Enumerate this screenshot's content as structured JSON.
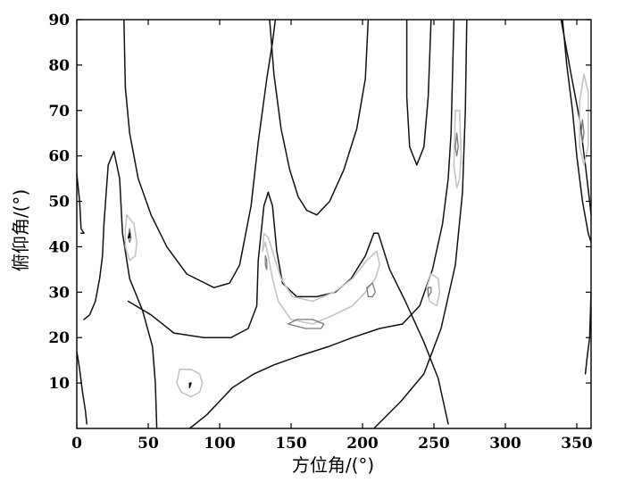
{
  "chart_data": {
    "type": "contour",
    "xlabel": "方位角/(°)",
    "ylabel": "俯仰角/(°)",
    "xlim": [
      0,
      360
    ],
    "ylim": [
      0,
      90
    ],
    "xticks": [
      0,
      50,
      100,
      150,
      200,
      250,
      300,
      350
    ],
    "yticks": [
      10,
      20,
      30,
      40,
      50,
      60,
      70,
      80,
      90
    ],
    "grid": false,
    "colors": {
      "dark": "#111111",
      "mid": "#7a7a7a",
      "light": "#c4c4c4"
    },
    "contours": [
      {
        "level": "dark",
        "points": [
          [
            0,
            56
          ],
          [
            2,
            50
          ],
          [
            3,
            44
          ],
          [
            5,
            43
          ],
          [
            3,
            43
          ]
        ]
      },
      {
        "level": "dark",
        "points": [
          [
            0,
            17
          ],
          [
            2,
            13
          ],
          [
            4,
            8
          ],
          [
            6,
            4
          ],
          [
            7,
            1
          ]
        ]
      },
      {
        "level": "dark",
        "points": [
          [
            33,
            90
          ],
          [
            34,
            75
          ],
          [
            37,
            65
          ],
          [
            43,
            55
          ],
          [
            52,
            47
          ],
          [
            63,
            40
          ],
          [
            77,
            34
          ],
          [
            96,
            31
          ],
          [
            107,
            32
          ],
          [
            114,
            36
          ],
          [
            122,
            49
          ],
          [
            127,
            63
          ],
          [
            133,
            77
          ],
          [
            137,
            85
          ],
          [
            139,
            90
          ]
        ]
      },
      {
        "level": "dark",
        "points": [
          [
            135,
            90
          ],
          [
            138,
            78
          ],
          [
            143,
            66
          ],
          [
            149,
            57
          ],
          [
            155,
            51
          ],
          [
            161,
            48
          ],
          [
            168,
            47
          ],
          [
            177,
            50
          ],
          [
            187,
            57
          ],
          [
            196,
            66
          ],
          [
            202,
            77
          ],
          [
            204,
            90
          ]
        ]
      },
      {
        "level": "dark",
        "points": [
          [
            231,
            90
          ],
          [
            231,
            73
          ],
          [
            233,
            62
          ],
          [
            238,
            58
          ],
          [
            243,
            62
          ],
          [
            246,
            73
          ],
          [
            248,
            90
          ]
        ]
      },
      {
        "level": "dark",
        "points": [
          [
            56,
            0
          ],
          [
            55,
            10
          ],
          [
            53,
            18
          ],
          [
            46,
            26
          ],
          [
            37,
            33
          ],
          [
            32,
            43
          ],
          [
            30,
            55
          ],
          [
            26,
            61
          ],
          [
            22,
            58
          ],
          [
            19,
            45
          ],
          [
            18,
            38
          ],
          [
            16,
            33
          ],
          [
            13,
            28
          ],
          [
            9,
            25
          ],
          [
            5,
            24
          ]
        ]
      },
      {
        "level": "dark",
        "points": [
          [
            36,
            28
          ],
          [
            52,
            25
          ],
          [
            68,
            21
          ],
          [
            89,
            20
          ],
          [
            108,
            20
          ],
          [
            120,
            22
          ],
          [
            126,
            27
          ],
          [
            127,
            37
          ],
          [
            131,
            49
          ],
          [
            134,
            52
          ],
          [
            137,
            49
          ],
          [
            140,
            39
          ],
          [
            144,
            32
          ],
          [
            154,
            29
          ],
          [
            168,
            29
          ],
          [
            181,
            30
          ],
          [
            192,
            33
          ],
          [
            202,
            38
          ],
          [
            208,
            43
          ],
          [
            211,
            43
          ],
          [
            215,
            39
          ],
          [
            219,
            35
          ],
          [
            230,
            28
          ],
          [
            243,
            19
          ],
          [
            253,
            11
          ],
          [
            260,
            1
          ]
        ]
      },
      {
        "level": "dark",
        "points": [
          [
            79,
            0
          ],
          [
            91,
            3
          ],
          [
            109,
            9
          ],
          [
            124,
            12
          ],
          [
            138,
            14
          ],
          [
            156,
            16
          ],
          [
            176,
            18
          ],
          [
            193,
            20
          ],
          [
            212,
            22
          ],
          [
            228,
            23
          ],
          [
            240,
            27
          ],
          [
            249,
            35
          ],
          [
            256,
            45
          ],
          [
            260,
            55
          ],
          [
            262,
            65
          ],
          [
            264,
            90
          ]
        ]
      },
      {
        "level": "dark",
        "points": [
          [
            208,
            0
          ],
          [
            227,
            6
          ],
          [
            243,
            12
          ],
          [
            255,
            22
          ],
          [
            265,
            36
          ],
          [
            270,
            52
          ],
          [
            272,
            70
          ],
          [
            273,
            90
          ]
        ]
      },
      {
        "level": "dark",
        "points": [
          [
            340,
            90
          ],
          [
            343,
            80
          ],
          [
            347,
            70
          ],
          [
            350,
            60
          ],
          [
            354,
            50
          ],
          [
            358,
            43
          ],
          [
            360,
            41
          ]
        ]
      },
      {
        "level": "dark",
        "points": [
          [
            339,
            90
          ],
          [
            346,
            78
          ],
          [
            352,
            68
          ],
          [
            356,
            58
          ],
          [
            359,
            50
          ],
          [
            360,
            47
          ]
        ]
      },
      {
        "level": "dark",
        "points": [
          [
            360,
            30
          ],
          [
            359,
            20
          ],
          [
            357,
            15
          ],
          [
            356,
            12
          ]
        ]
      },
      {
        "level": "light",
        "points": [
          [
            35,
            47
          ],
          [
            40,
            45
          ],
          [
            42,
            41
          ],
          [
            41,
            38
          ],
          [
            37,
            37
          ],
          [
            34,
            40
          ],
          [
            34,
            44
          ],
          [
            35,
            47
          ]
        ]
      },
      {
        "level": "light",
        "points": [
          [
            130,
            39
          ],
          [
            132,
            41
          ],
          [
            134,
            38
          ],
          [
            137,
            33
          ],
          [
            141,
            28
          ],
          [
            150,
            24
          ],
          [
            165,
            23
          ],
          [
            180,
            25
          ],
          [
            193,
            27
          ],
          [
            202,
            30
          ],
          [
            209,
            33
          ],
          [
            212,
            36
          ],
          [
            210,
            39
          ],
          [
            203,
            37
          ],
          [
            193,
            33
          ],
          [
            180,
            30
          ],
          [
            165,
            28
          ],
          [
            151,
            29
          ],
          [
            143,
            33
          ],
          [
            138,
            38
          ],
          [
            134,
            42
          ],
          [
            131,
            43
          ],
          [
            130,
            39
          ]
        ]
      },
      {
        "level": "light",
        "points": [
          [
            248,
            34
          ],
          [
            253,
            33
          ],
          [
            254,
            30
          ],
          [
            252,
            27
          ],
          [
            247,
            28
          ],
          [
            245,
            31
          ],
          [
            248,
            34
          ]
        ]
      },
      {
        "level": "light",
        "points": [
          [
            72,
            13
          ],
          [
            80,
            13
          ],
          [
            86,
            12
          ],
          [
            88,
            10
          ],
          [
            86,
            8
          ],
          [
            80,
            7
          ],
          [
            73,
            8
          ],
          [
            70,
            10
          ],
          [
            72,
            13
          ]
        ]
      },
      {
        "level": "light",
        "points": [
          [
            268,
            70
          ],
          [
            269,
            60
          ],
          [
            268,
            55
          ],
          [
            266,
            53
          ],
          [
            264,
            58
          ],
          [
            265,
            70
          ],
          [
            268,
            70
          ]
        ]
      },
      {
        "level": "light",
        "points": [
          [
            358,
            74
          ],
          [
            358,
            62
          ],
          [
            355,
            58
          ],
          [
            352,
            62
          ],
          [
            352,
            72
          ],
          [
            355,
            78
          ],
          [
            358,
            74
          ]
        ]
      },
      {
        "level": "mid",
        "points": [
          [
            37,
            44
          ],
          [
            38,
            42
          ],
          [
            37,
            41
          ],
          [
            36,
            42
          ],
          [
            37,
            44
          ]
        ]
      },
      {
        "level": "mid",
        "points": [
          [
            132,
            38
          ],
          [
            133,
            37
          ],
          [
            133,
            35
          ],
          [
            132,
            36
          ],
          [
            132,
            38
          ]
        ]
      },
      {
        "level": "mid",
        "points": [
          [
            148,
            23
          ],
          [
            160,
            22
          ],
          [
            171,
            22
          ],
          [
            173,
            23
          ],
          [
            165,
            24
          ],
          [
            154,
            24
          ],
          [
            148,
            23
          ]
        ]
      },
      {
        "level": "mid",
        "points": [
          [
            203,
            31
          ],
          [
            207,
            32
          ],
          [
            209,
            30
          ],
          [
            207,
            29
          ],
          [
            204,
            29
          ],
          [
            203,
            31
          ]
        ]
      },
      {
        "level": "mid",
        "points": [
          [
            246,
            31
          ],
          [
            248,
            31
          ],
          [
            248,
            30
          ],
          [
            246,
            29
          ],
          [
            246,
            31
          ]
        ]
      },
      {
        "level": "mid",
        "points": [
          [
            266,
            65
          ],
          [
            267,
            62
          ],
          [
            266,
            60
          ],
          [
            265,
            62
          ],
          [
            266,
            65
          ]
        ]
      },
      {
        "level": "mid",
        "points": [
          [
            354,
            68
          ],
          [
            355,
            65
          ],
          [
            354,
            63
          ],
          [
            353,
            65
          ],
          [
            354,
            68
          ]
        ]
      },
      {
        "level": "dark",
        "points": [
          [
            79,
            10
          ],
          [
            80,
            10
          ],
          [
            79,
            9
          ],
          [
            79,
            10
          ]
        ]
      },
      {
        "level": "dark",
        "points": [
          [
            37,
            43
          ],
          [
            37,
            42
          ],
          [
            36,
            42
          ],
          [
            37,
            43
          ]
        ]
      }
    ]
  }
}
